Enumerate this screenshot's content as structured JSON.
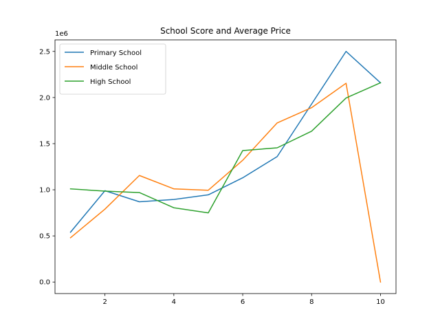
{
  "chart_data": {
    "type": "line",
    "title": "School Score and Average Price",
    "xlabel": "",
    "ylabel": "",
    "y_offset_label": "1e6",
    "x": [
      1,
      2,
      3,
      4,
      5,
      6,
      7,
      8,
      9,
      10
    ],
    "xlim": [
      0.55,
      10.45
    ],
    "ylim": [
      -0.125,
      2.625
    ],
    "xticks": [
      2,
      4,
      6,
      8,
      10
    ],
    "yticks": [
      0.0,
      0.5,
      1.0,
      1.5,
      2.0,
      2.5
    ],
    "xtick_labels": [
      "2",
      "4",
      "6",
      "8",
      "10"
    ],
    "ytick_labels": [
      "0.0",
      "0.5",
      "1.0",
      "1.5",
      "2.0",
      "2.5"
    ],
    "grid": false,
    "legend_position": "upper-left",
    "series": [
      {
        "name": "Primary School",
        "color": "#1f77b4",
        "values": [
          0.54,
          0.99,
          0.87,
          0.895,
          0.945,
          1.13,
          1.36,
          1.93,
          2.5,
          2.16
        ]
      },
      {
        "name": "Middle School",
        "color": "#ff7f0e",
        "values": [
          0.48,
          0.79,
          1.155,
          1.01,
          0.995,
          1.32,
          1.725,
          1.89,
          2.155,
          0.0
        ]
      },
      {
        "name": "High School",
        "color": "#2ca02c",
        "values": [
          1.01,
          0.985,
          0.97,
          0.805,
          0.75,
          1.425,
          1.455,
          1.635,
          1.995,
          2.16
        ]
      }
    ]
  }
}
